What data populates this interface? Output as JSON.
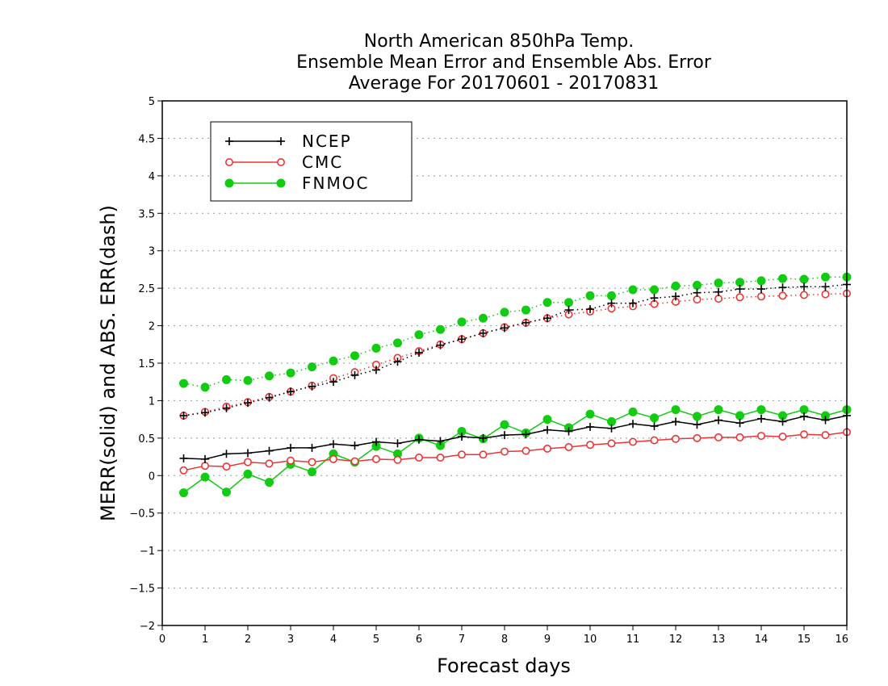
{
  "chart_data": {
    "type": "line",
    "title": [
      "North American 850hPa Temp.",
      "Ensemble Mean Error and Ensemble Abs. Error",
      "Average For 20170601 - 20170831"
    ],
    "xlabel": "Forecast days",
    "ylabel": "MERR(solid) and ABS. ERR(dash)",
    "xlim": [
      0,
      16
    ],
    "ylim": [
      -2,
      5
    ],
    "xticks": [
      "0",
      "1",
      "2",
      "3",
      "4",
      "5",
      "6",
      "7",
      "8",
      "9",
      "10",
      "11",
      "12",
      "13",
      "14",
      "15",
      "16"
    ],
    "yticks": [
      "−2",
      "−1.5",
      "−1",
      "−0.5",
      "0",
      "0.5",
      "1",
      "1.5",
      "2",
      "2.5",
      "3",
      "3.5",
      "4",
      "4.5",
      "5"
    ],
    "grid": "horizontal-dotted",
    "legend_position": "top-left",
    "x": [
      0.5,
      1,
      1.5,
      2,
      2.5,
      3,
      3.5,
      4,
      4.5,
      5,
      5.5,
      6,
      6.5,
      7,
      7.5,
      8,
      8.5,
      9,
      9.5,
      10,
      10.5,
      11,
      11.5,
      12,
      12.5,
      13,
      13.5,
      14,
      14.5,
      15,
      15.5,
      16
    ],
    "series": [
      {
        "name": "NCEP",
        "color": "#000000",
        "marker": "plus",
        "mean_error": [
          0.23,
          0.22,
          0.29,
          0.3,
          0.33,
          0.37,
          0.37,
          0.42,
          0.4,
          0.45,
          0.43,
          0.48,
          0.46,
          0.52,
          0.5,
          0.54,
          0.55,
          0.61,
          0.59,
          0.65,
          0.63,
          0.69,
          0.66,
          0.72,
          0.68,
          0.74,
          0.7,
          0.76,
          0.72,
          0.79,
          0.74,
          0.8
        ],
        "abs_error": [
          0.8,
          0.84,
          0.9,
          0.97,
          1.04,
          1.12,
          1.19,
          1.25,
          1.34,
          1.41,
          1.52,
          1.64,
          1.74,
          1.82,
          1.9,
          1.97,
          2.04,
          2.1,
          2.21,
          2.22,
          2.3,
          2.3,
          2.37,
          2.39,
          2.44,
          2.45,
          2.49,
          2.49,
          2.51,
          2.52,
          2.52,
          2.55
        ]
      },
      {
        "name": "CMC",
        "color": "#ee3333",
        "marker": "open-circle",
        "mean_error": [
          0.07,
          0.13,
          0.12,
          0.18,
          0.16,
          0.2,
          0.18,
          0.22,
          0.19,
          0.22,
          0.21,
          0.24,
          0.24,
          0.28,
          0.28,
          0.32,
          0.33,
          0.36,
          0.38,
          0.41,
          0.43,
          0.45,
          0.47,
          0.49,
          0.5,
          0.51,
          0.51,
          0.53,
          0.52,
          0.55,
          0.54,
          0.58
        ],
        "abs_error": [
          0.8,
          0.85,
          0.92,
          0.98,
          1.05,
          1.12,
          1.2,
          1.3,
          1.38,
          1.48,
          1.57,
          1.66,
          1.75,
          1.82,
          1.9,
          1.98,
          2.04,
          2.1,
          2.15,
          2.19,
          2.23,
          2.26,
          2.29,
          2.32,
          2.35,
          2.36,
          2.38,
          2.39,
          2.4,
          2.41,
          2.42,
          2.43
        ]
      },
      {
        "name": "FNMOC",
        "color": "#11cc11",
        "marker": "filled-circle",
        "mean_error": [
          -0.23,
          -0.02,
          -0.22,
          0.02,
          -0.09,
          0.15,
          0.05,
          0.29,
          0.18,
          0.39,
          0.29,
          0.5,
          0.4,
          0.59,
          0.49,
          0.68,
          0.57,
          0.75,
          0.64,
          0.82,
          0.72,
          0.85,
          0.77,
          0.88,
          0.79,
          0.88,
          0.8,
          0.88,
          0.8,
          0.88,
          0.8,
          0.88
        ],
        "abs_error": [
          1.23,
          1.18,
          1.28,
          1.27,
          1.33,
          1.37,
          1.45,
          1.53,
          1.6,
          1.7,
          1.77,
          1.88,
          1.95,
          2.05,
          2.1,
          2.18,
          2.21,
          2.31,
          2.31,
          2.4,
          2.4,
          2.48,
          2.48,
          2.53,
          2.54,
          2.57,
          2.58,
          2.6,
          2.63,
          2.62,
          2.65,
          2.65
        ]
      }
    ]
  }
}
